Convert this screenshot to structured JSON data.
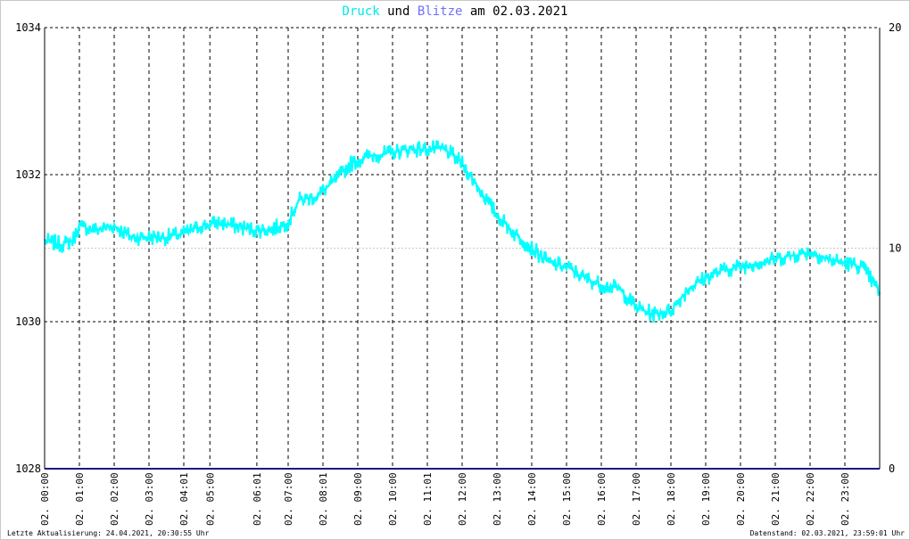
{
  "title": {
    "word1": "Druck",
    "word2": "und",
    "word3": "Blitze",
    "word4": "am 02.03.2021",
    "color1": "#00e8e8",
    "color3": "#7070ff"
  },
  "footer": {
    "left": "Letzte Aktualisierung: 24.04.2021, 20:30:55 Uhr",
    "right": "Datenstand: 02.03.2021, 23:59:01 Uhr"
  },
  "chart_data": {
    "type": "line",
    "x_unit": "hour of day",
    "xlim": [
      0,
      24
    ],
    "grid": true,
    "y_left": {
      "lim": [
        1028,
        1034
      ],
      "ticks": [
        "1028",
        "1030",
        "1032",
        "1034"
      ]
    },
    "y_right": {
      "lim": [
        0,
        20
      ],
      "ticks": [
        "0",
        "10",
        "20"
      ]
    },
    "x_ticks": [
      {
        "x": 0.0,
        "label": "02. 00:00"
      },
      {
        "x": 1.0,
        "label": "02. 01:00"
      },
      {
        "x": 2.0,
        "label": "02. 02:00"
      },
      {
        "x": 3.0,
        "label": "02. 03:00"
      },
      {
        "x": 4.0,
        "label": "02. 04:01"
      },
      {
        "x": 4.75,
        "label": "02. 05:00"
      },
      {
        "x": 6.1,
        "label": "02. 06:01"
      },
      {
        "x": 7.0,
        "label": "02. 07:00"
      },
      {
        "x": 8.0,
        "label": "02. 08:01"
      },
      {
        "x": 9.0,
        "label": "02. 09:00"
      },
      {
        "x": 10.0,
        "label": "02. 10:00"
      },
      {
        "x": 11.0,
        "label": "02. 11:01"
      },
      {
        "x": 12.0,
        "label": "02. 12:00"
      },
      {
        "x": 13.0,
        "label": "02. 13:00"
      },
      {
        "x": 14.0,
        "label": "02. 14:00"
      },
      {
        "x": 15.0,
        "label": "02. 15:00"
      },
      {
        "x": 16.0,
        "label": "02. 16:00"
      },
      {
        "x": 17.0,
        "label": "02. 17:00"
      },
      {
        "x": 18.0,
        "label": "02. 18:00"
      },
      {
        "x": 19.0,
        "label": "02. 19:00"
      },
      {
        "x": 20.0,
        "label": "02. 20:00"
      },
      {
        "x": 21.0,
        "label": "02. 21:00"
      },
      {
        "x": 22.0,
        "label": "02. 22:00"
      },
      {
        "x": 23.0,
        "label": "02. 23:00"
      }
    ],
    "series": [
      {
        "name": "Druck",
        "axis": "left",
        "color": "#00ffff",
        "noise": 0.12,
        "points": [
          [
            0.0,
            1031.1
          ],
          [
            0.5,
            1031.05
          ],
          [
            0.8,
            1031.1
          ],
          [
            1.0,
            1031.3
          ],
          [
            1.5,
            1031.25
          ],
          [
            2.0,
            1031.3
          ],
          [
            2.5,
            1031.15
          ],
          [
            3.0,
            1031.15
          ],
          [
            3.5,
            1031.15
          ],
          [
            4.0,
            1031.2
          ],
          [
            4.5,
            1031.3
          ],
          [
            5.0,
            1031.35
          ],
          [
            5.5,
            1031.3
          ],
          [
            6.0,
            1031.25
          ],
          [
            6.5,
            1031.25
          ],
          [
            7.0,
            1031.35
          ],
          [
            7.3,
            1031.65
          ],
          [
            7.8,
            1031.7
          ],
          [
            8.3,
            1031.9
          ],
          [
            8.8,
            1032.15
          ],
          [
            9.3,
            1032.25
          ],
          [
            10.0,
            1032.3
          ],
          [
            10.5,
            1032.35
          ],
          [
            11.0,
            1032.35
          ],
          [
            11.5,
            1032.35
          ],
          [
            12.0,
            1032.15
          ],
          [
            12.5,
            1031.8
          ],
          [
            13.0,
            1031.45
          ],
          [
            13.5,
            1031.2
          ],
          [
            14.0,
            1031.0
          ],
          [
            14.5,
            1030.8
          ],
          [
            15.0,
            1030.75
          ],
          [
            15.5,
            1030.6
          ],
          [
            16.0,
            1030.5
          ],
          [
            16.5,
            1030.45
          ],
          [
            17.0,
            1030.2
          ],
          [
            17.5,
            1030.1
          ],
          [
            18.0,
            1030.15
          ],
          [
            18.5,
            1030.45
          ],
          [
            19.0,
            1030.6
          ],
          [
            19.5,
            1030.7
          ],
          [
            20.0,
            1030.75
          ],
          [
            20.5,
            1030.8
          ],
          [
            21.0,
            1030.85
          ],
          [
            21.5,
            1030.9
          ],
          [
            22.0,
            1030.95
          ],
          [
            22.5,
            1030.85
          ],
          [
            23.0,
            1030.8
          ],
          [
            23.5,
            1030.75
          ],
          [
            24.0,
            1030.4
          ]
        ]
      },
      {
        "name": "Blitze",
        "axis": "right",
        "color": "#1a1a80",
        "points": [
          [
            0,
            0
          ],
          [
            24,
            0
          ]
        ]
      }
    ]
  }
}
